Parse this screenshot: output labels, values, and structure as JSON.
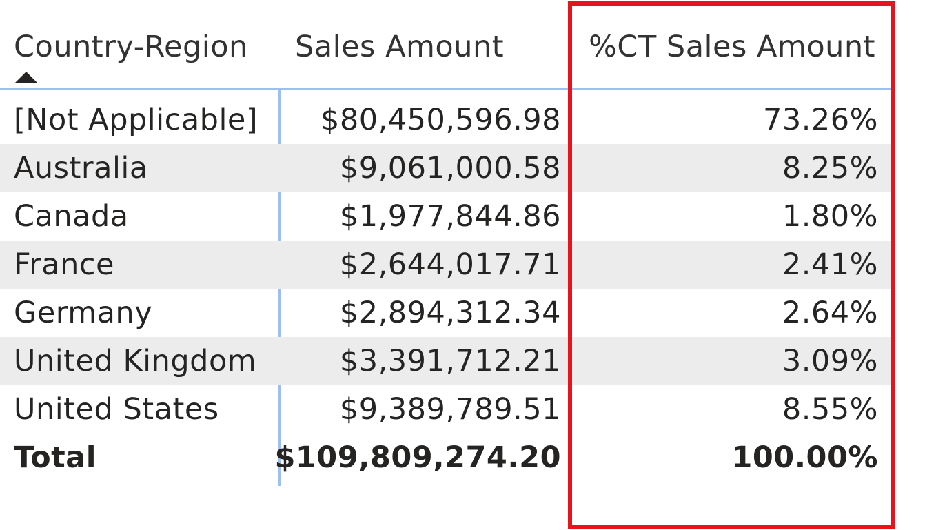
{
  "table": {
    "headers": {
      "country": "Country-Region",
      "sales": "Sales Amount",
      "pct": "%CT Sales Amount"
    },
    "sort": {
      "column": "country",
      "direction": "ascending",
      "icon": "sort-ascending-triangle-icon"
    },
    "rows": [
      {
        "country": "[Not Applicable]",
        "sales": "$80,450,596.98",
        "pct": "73.26%"
      },
      {
        "country": "Australia",
        "sales": "$9,061,000.58",
        "pct": "8.25%"
      },
      {
        "country": "Canada",
        "sales": "$1,977,844.86",
        "pct": "1.80%"
      },
      {
        "country": "France",
        "sales": "$2,644,017.71",
        "pct": "2.41%"
      },
      {
        "country": "Germany",
        "sales": "$2,894,312.34",
        "pct": "2.64%"
      },
      {
        "country": "United Kingdom",
        "sales": "$3,391,712.21",
        "pct": "3.09%"
      },
      {
        "country": "United States",
        "sales": "$9,389,789.51",
        "pct": "8.55%"
      }
    ],
    "total": {
      "country": "Total",
      "sales": "$109,809,274.20",
      "pct": "100.00%"
    }
  },
  "colors": {
    "header_border": "#9ec0ef",
    "band": "#ececec",
    "highlight": "#e8141c",
    "text": "#252423"
  }
}
